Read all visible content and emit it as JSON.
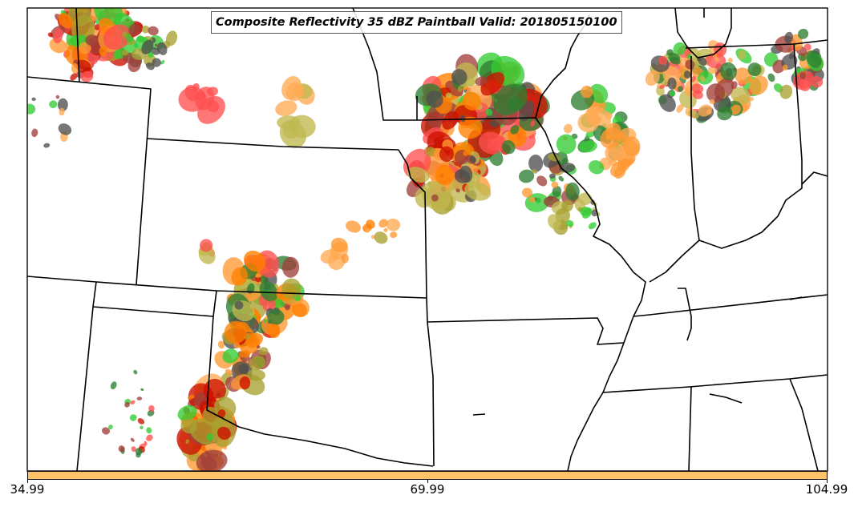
{
  "title": "Composite Reflectivity 35 dBZ Paintball Valid: 201805150100",
  "colorbar": {
    "color": "#ffc266",
    "ticks": [
      "34.99",
      "69.99",
      "104.99"
    ]
  },
  "colors": {
    "red": "#ff5050",
    "orange": "#ff9933",
    "dark_orange": "#ff8000",
    "crimson": "#cc1100",
    "maroon": "#a0403a",
    "olive": "#a8a030",
    "khaki": "#c0b850",
    "green": "#33cc33",
    "dark_green": "#2e7d32",
    "gray": "#505050",
    "light_orange": "#ffaa55"
  }
}
